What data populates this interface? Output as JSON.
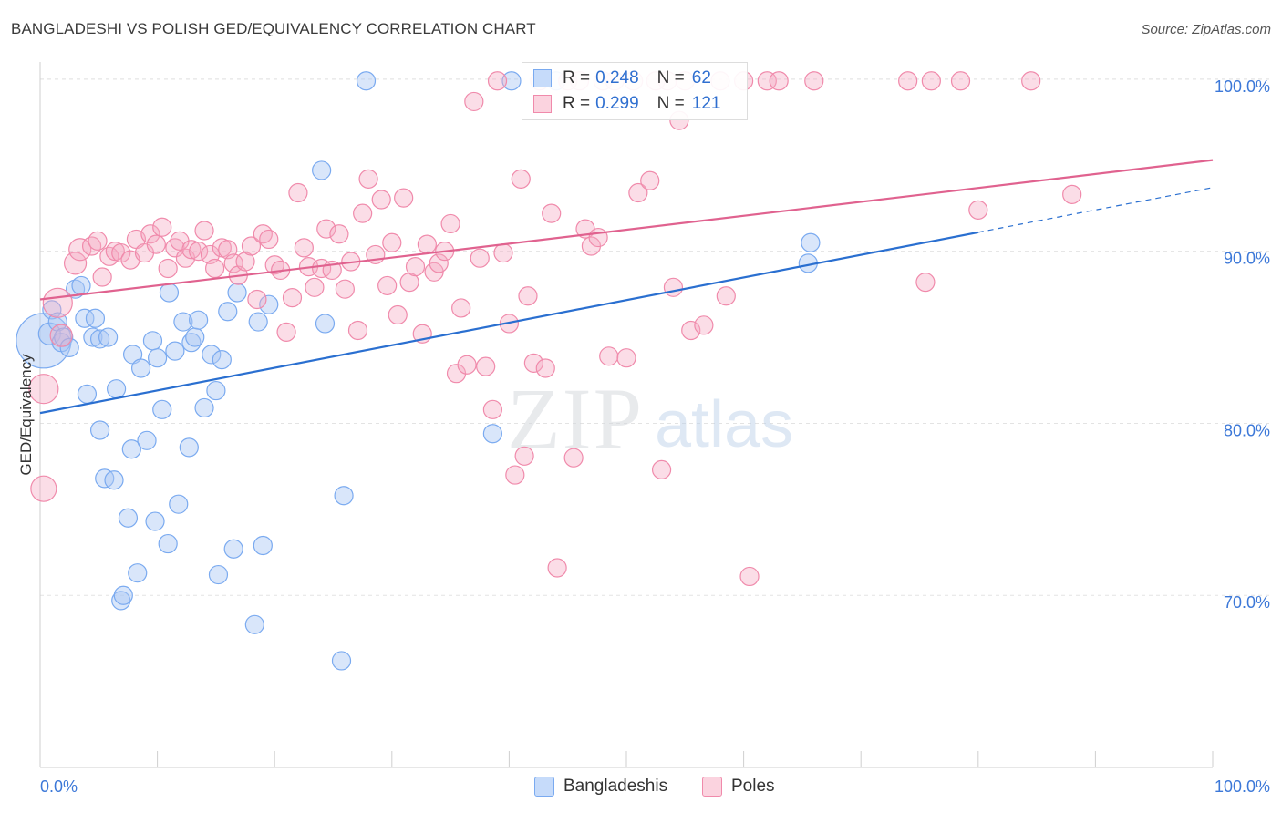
{
  "header": {
    "title": "BANGLADESHI VS POLISH GED/EQUIVALENCY CORRELATION CHART",
    "source": "Source: ZipAtlas.com"
  },
  "watermark": {
    "zip": "ZIP",
    "atlas": "atlas"
  },
  "legend_top": {
    "rows": [
      {
        "r_label": "R =",
        "r_value": "0.248",
        "n_label": "N =",
        "n_value": "62",
        "color": "#7aaaf0"
      },
      {
        "r_label": "R =",
        "r_value": "0.299",
        "n_label": "N =",
        "n_value": "121",
        "color": "#f08aab"
      }
    ]
  },
  "legend_bottom": {
    "items": [
      {
        "label": "Bangladeshis",
        "color": "#7aaaf0"
      },
      {
        "label": "Poles",
        "color": "#f08aab"
      }
    ]
  },
  "chart_data": {
    "type": "scatter",
    "title": "BANGLADESHI VS POLISH GED/EQUIVALENCY CORRELATION CHART",
    "xlabel": "",
    "ylabel": "GED/Equivalency",
    "xlim": [
      0,
      100
    ],
    "ylim": [
      60,
      101
    ],
    "x_tick_labels": [
      "0.0%",
      "100.0%"
    ],
    "y_ticks": [
      70,
      80,
      90,
      100
    ],
    "y_tick_labels": [
      "70.0%",
      "80.0%",
      "90.0%",
      "100.0%"
    ],
    "grid": true,
    "legend_position": "top-center",
    "series": [
      {
        "name": "Bangladeshis",
        "color": "#7aaaf0",
        "line_color": "#2a6fd0",
        "r": 0.248,
        "n": 62,
        "trend": {
          "x0": 0,
          "y0": 80.6,
          "x1": 80,
          "y1": 91.1,
          "dashed_to_x": 100,
          "dashed_to_y": 93.7
        },
        "points": [
          [
            0.3,
            84.8,
            30
          ],
          [
            0.8,
            85.2,
            12
          ],
          [
            1.0,
            86.6,
            10
          ],
          [
            1.5,
            85.9,
            10
          ],
          [
            1.8,
            84.7,
            10
          ],
          [
            2.0,
            85.0,
            10
          ],
          [
            2.5,
            84.4,
            10
          ],
          [
            3.0,
            87.8,
            10
          ],
          [
            3.5,
            88.0,
            10
          ],
          [
            3.8,
            86.1,
            10
          ],
          [
            4.0,
            81.7,
            10
          ],
          [
            4.5,
            85.0,
            10
          ],
          [
            4.7,
            86.1,
            10
          ],
          [
            5.1,
            84.9,
            10
          ],
          [
            5.1,
            79.6,
            10
          ],
          [
            5.8,
            85.0,
            10
          ],
          [
            5.5,
            76.8,
            10
          ],
          [
            6.3,
            76.7,
            10
          ],
          [
            6.5,
            82.0,
            10
          ],
          [
            6.9,
            69.7,
            10
          ],
          [
            7.1,
            70.0,
            10
          ],
          [
            7.5,
            74.5,
            10
          ],
          [
            7.8,
            78.5,
            10
          ],
          [
            7.9,
            84.0,
            10
          ],
          [
            8.3,
            71.3,
            10
          ],
          [
            8.6,
            83.2,
            10
          ],
          [
            9.1,
            79.0,
            10
          ],
          [
            9.6,
            84.8,
            10
          ],
          [
            9.8,
            74.3,
            10
          ],
          [
            10.0,
            83.8,
            10
          ],
          [
            10.4,
            80.8,
            10
          ],
          [
            10.9,
            73.0,
            10
          ],
          [
            11.0,
            87.6,
            10
          ],
          [
            11.5,
            84.2,
            10
          ],
          [
            11.8,
            75.3,
            10
          ],
          [
            12.2,
            85.9,
            10
          ],
          [
            12.7,
            78.6,
            10
          ],
          [
            12.9,
            84.7,
            10
          ],
          [
            13.2,
            85.0,
            10
          ],
          [
            13.5,
            86.0,
            10
          ],
          [
            14.0,
            80.9,
            10
          ],
          [
            14.6,
            84.0,
            10
          ],
          [
            15.0,
            81.9,
            10
          ],
          [
            15.2,
            71.2,
            10
          ],
          [
            15.5,
            83.7,
            10
          ],
          [
            16.0,
            86.5,
            10
          ],
          [
            16.5,
            72.7,
            10
          ],
          [
            16.8,
            87.6,
            10
          ],
          [
            18.3,
            68.3,
            10
          ],
          [
            18.6,
            85.9,
            10
          ],
          [
            19.0,
            72.9,
            10
          ],
          [
            19.5,
            86.9,
            10
          ],
          [
            24.0,
            94.7,
            10
          ],
          [
            24.3,
            85.8,
            10
          ],
          [
            25.7,
            66.2,
            10
          ],
          [
            25.9,
            75.8,
            10
          ],
          [
            27.8,
            99.9,
            10
          ],
          [
            38.6,
            79.4,
            10
          ],
          [
            40.2,
            99.9,
            10
          ],
          [
            44.0,
            99.9,
            10
          ],
          [
            65.7,
            90.5,
            10
          ],
          [
            65.5,
            89.3,
            10
          ]
        ]
      },
      {
        "name": "Poles",
        "color": "#f08aab",
        "line_color": "#e0628f",
        "r": 0.299,
        "n": 121,
        "trend": {
          "x0": 0,
          "y0": 87.2,
          "x1": 100,
          "y1": 95.3
        },
        "points": [
          [
            0.3,
            82.0,
            16
          ],
          [
            0.3,
            76.2,
            14
          ],
          [
            1.5,
            87.0,
            16
          ],
          [
            1.8,
            85.1,
            12
          ],
          [
            3.0,
            89.3,
            12
          ],
          [
            3.4,
            90.1,
            12
          ],
          [
            4.4,
            90.3,
            10
          ],
          [
            4.9,
            90.6,
            10
          ],
          [
            5.3,
            88.5,
            10
          ],
          [
            5.9,
            89.7,
            10
          ],
          [
            6.4,
            90.0,
            10
          ],
          [
            6.9,
            89.9,
            10
          ],
          [
            7.7,
            89.5,
            10
          ],
          [
            8.2,
            90.7,
            10
          ],
          [
            8.9,
            89.9,
            10
          ],
          [
            9.4,
            91.0,
            10
          ],
          [
            9.9,
            90.4,
            10
          ],
          [
            10.4,
            91.4,
            10
          ],
          [
            10.9,
            89.0,
            10
          ],
          [
            11.5,
            90.2,
            10
          ],
          [
            11.9,
            90.6,
            10
          ],
          [
            12.4,
            89.6,
            10
          ],
          [
            12.9,
            90.1,
            10
          ],
          [
            13.5,
            90.0,
            10
          ],
          [
            14.0,
            91.2,
            10
          ],
          [
            14.5,
            89.8,
            10
          ],
          [
            14.9,
            89.0,
            10
          ],
          [
            15.5,
            90.2,
            10
          ],
          [
            16.0,
            90.1,
            10
          ],
          [
            16.5,
            89.3,
            10
          ],
          [
            16.9,
            88.6,
            10
          ],
          [
            17.5,
            89.4,
            10
          ],
          [
            18.0,
            90.3,
            10
          ],
          [
            18.5,
            87.2,
            10
          ],
          [
            19.0,
            91.0,
            10
          ],
          [
            19.5,
            90.7,
            10
          ],
          [
            20.0,
            89.2,
            10
          ],
          [
            20.5,
            88.9,
            10
          ],
          [
            21.0,
            85.3,
            10
          ],
          [
            21.5,
            87.3,
            10
          ],
          [
            22.0,
            93.4,
            10
          ],
          [
            22.5,
            90.2,
            10
          ],
          [
            22.9,
            89.1,
            10
          ],
          [
            23.4,
            87.9,
            10
          ],
          [
            24.0,
            89.0,
            10
          ],
          [
            24.4,
            91.3,
            10
          ],
          [
            24.9,
            88.9,
            10
          ],
          [
            25.5,
            91.0,
            10
          ],
          [
            26.0,
            87.8,
            10
          ],
          [
            26.5,
            89.4,
            10
          ],
          [
            27.1,
            85.4,
            10
          ],
          [
            27.5,
            92.2,
            10
          ],
          [
            28.0,
            94.2,
            10
          ],
          [
            28.6,
            89.8,
            10
          ],
          [
            29.1,
            93.0,
            10
          ],
          [
            29.6,
            88.0,
            10
          ],
          [
            30.0,
            90.5,
            10
          ],
          [
            30.5,
            86.3,
            10
          ],
          [
            31.0,
            93.1,
            10
          ],
          [
            31.5,
            88.2,
            10
          ],
          [
            32.0,
            89.1,
            10
          ],
          [
            32.6,
            85.2,
            10
          ],
          [
            33.0,
            90.4,
            10
          ],
          [
            33.6,
            88.8,
            10
          ],
          [
            34.0,
            89.3,
            10
          ],
          [
            34.5,
            90.0,
            10
          ],
          [
            35.0,
            91.6,
            10
          ],
          [
            35.5,
            82.9,
            10
          ],
          [
            35.9,
            86.7,
            10
          ],
          [
            36.4,
            83.4,
            10
          ],
          [
            37.0,
            98.7,
            10
          ],
          [
            37.5,
            89.6,
            10
          ],
          [
            38.0,
            83.3,
            10
          ],
          [
            38.6,
            80.8,
            10
          ],
          [
            39.0,
            99.9,
            10
          ],
          [
            39.5,
            89.9,
            10
          ],
          [
            40.0,
            85.8,
            10
          ],
          [
            40.5,
            77.0,
            10
          ],
          [
            41.0,
            94.2,
            10
          ],
          [
            41.3,
            78.1,
            10
          ],
          [
            41.6,
            87.4,
            10
          ],
          [
            42.1,
            83.5,
            10
          ],
          [
            42.6,
            99.9,
            10
          ],
          [
            43.1,
            83.2,
            10
          ],
          [
            43.6,
            92.2,
            10
          ],
          [
            44.1,
            71.6,
            10
          ],
          [
            45.0,
            99.9,
            10
          ],
          [
            45.5,
            78.0,
            10
          ],
          [
            46.0,
            99.9,
            10
          ],
          [
            46.5,
            91.3,
            10
          ],
          [
            47.0,
            90.3,
            10
          ],
          [
            47.6,
            90.8,
            10
          ],
          [
            48.0,
            99.9,
            10
          ],
          [
            48.5,
            83.9,
            10
          ],
          [
            49.0,
            99.9,
            10
          ],
          [
            50.0,
            83.8,
            10
          ],
          [
            50.6,
            99.9,
            10
          ],
          [
            51.0,
            93.4,
            10
          ],
          [
            52.0,
            94.1,
            10
          ],
          [
            52.5,
            99.9,
            10
          ],
          [
            53.0,
            77.3,
            10
          ],
          [
            53.5,
            99.9,
            10
          ],
          [
            54.0,
            87.9,
            10
          ],
          [
            54.5,
            97.6,
            10
          ],
          [
            55.0,
            99.9,
            10
          ],
          [
            55.5,
            85.4,
            10
          ],
          [
            56.6,
            85.7,
            10
          ],
          [
            58.0,
            99.9,
            10
          ],
          [
            58.5,
            87.4,
            10
          ],
          [
            60.0,
            99.9,
            10
          ],
          [
            60.5,
            71.1,
            10
          ],
          [
            62.0,
            99.9,
            10
          ],
          [
            63.0,
            99.9,
            10
          ],
          [
            66.0,
            99.9,
            10
          ],
          [
            74.0,
            99.9,
            10
          ],
          [
            75.5,
            88.2,
            10
          ],
          [
            76.0,
            99.9,
            10
          ],
          [
            78.5,
            99.9,
            10
          ],
          [
            80.0,
            92.4,
            10
          ],
          [
            84.5,
            99.9,
            10
          ],
          [
            88.0,
            93.3,
            10
          ]
        ]
      }
    ]
  }
}
